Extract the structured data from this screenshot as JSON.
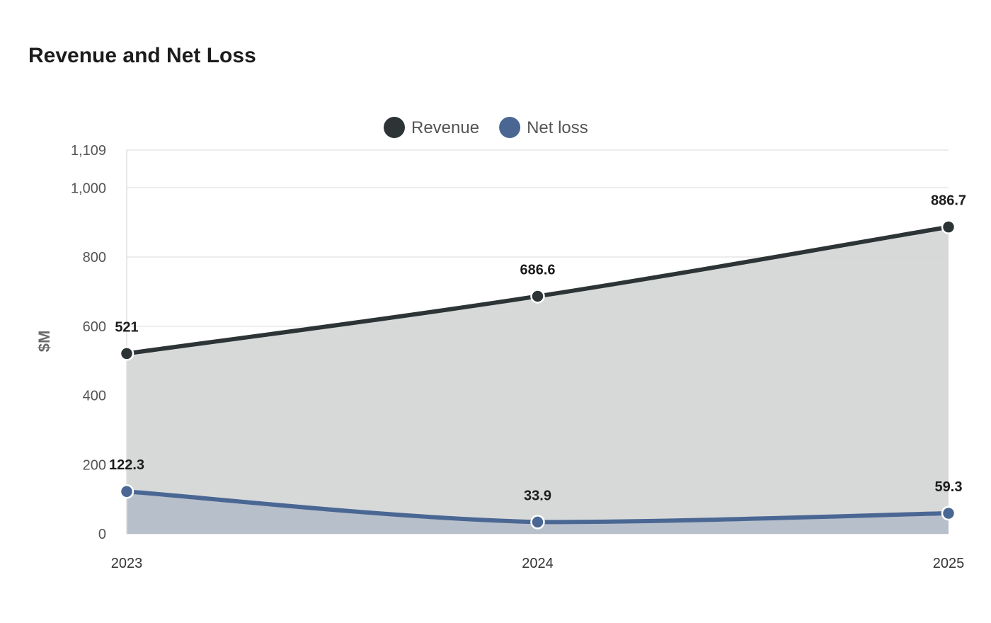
{
  "chart_data": {
    "type": "area",
    "title": "Revenue and Net Loss",
    "ylabel": "$M",
    "xlabel": "",
    "categories": [
      "2023",
      "2024",
      "2025"
    ],
    "ylim": [
      0,
      1109
    ],
    "yticks": [
      0,
      200,
      400,
      600,
      800,
      1000,
      1109
    ],
    "ytick_labels": [
      "0",
      "200",
      "400",
      "600",
      "800",
      "1,000",
      "1,109"
    ],
    "grid": true,
    "legend_position": "top-center",
    "series": [
      {
        "name": "Revenue",
        "values": [
          521,
          686.6,
          886.7
        ],
        "labels": [
          "521",
          "686.6",
          "886.7"
        ],
        "color": "#2d3436",
        "fill": "#d5d7d7"
      },
      {
        "name": "Net loss",
        "values": [
          122.3,
          33.9,
          59.3
        ],
        "labels": [
          "122.3",
          "33.9",
          "59.3"
        ],
        "color": "#4a6794",
        "fill": "#b5bec9"
      }
    ]
  }
}
